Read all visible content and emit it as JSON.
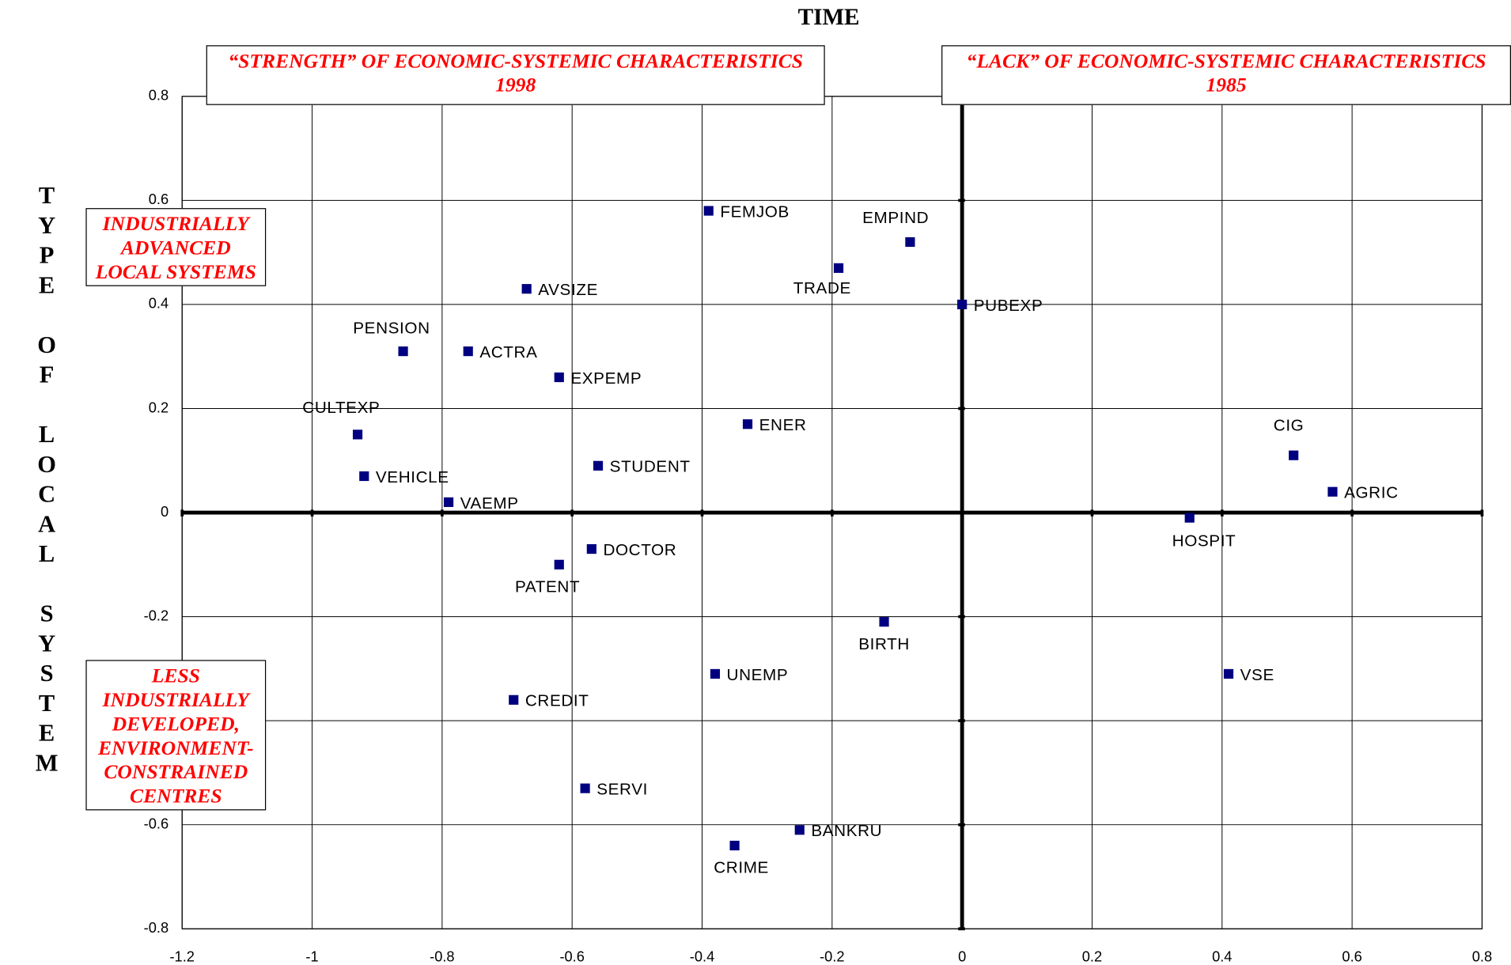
{
  "chart_data": {
    "type": "scatter",
    "title": "TIME",
    "y_label": "TYPE OF LOCAL SYSTEM",
    "series": [
      {
        "color": "#000080",
        "labels": [
          "FEMJOB",
          "EMPIND",
          "TRADE",
          "PUBEXP",
          "AVSIZE",
          "PENSION",
          "ACTRA",
          "EXPEMP",
          "ENER",
          "CULTEXP",
          "STUDENT",
          "VEHICLE",
          "VAEMP",
          "CIG",
          "AGRIC",
          "HOSPIT",
          "DOCTOR",
          "PATENT",
          "BIRTH",
          "UNEMP",
          "VSE",
          "CREDIT",
          "SERVI",
          "BANKRU",
          "CRIME"
        ],
        "x": [
          -0.39,
          -0.08,
          -0.19,
          0,
          -0.67,
          -0.86,
          -0.76,
          -0.62,
          -0.33,
          -0.93,
          -0.56,
          -0.92,
          -0.79,
          0.51,
          0.57,
          0.35,
          -0.57,
          -0.62,
          -0.12,
          -0.38,
          0.41,
          -0.69,
          -0.58,
          -0.25,
          -0.35
        ],
        "values": [
          0.58,
          0.52,
          0.47,
          0.4,
          0.43,
          0.31,
          0.31,
          0.26,
          0.17,
          0.15,
          0.09,
          0.07,
          0.02,
          0.11,
          0.04,
          -0.01,
          -0.07,
          -0.1,
          -0.21,
          -0.31,
          -0.31,
          -0.36,
          -0.53,
          -0.61,
          -0.64
        ]
      }
    ],
    "xlim": [
      -1.2,
      0.8
    ],
    "xticks": [
      -1.2,
      -1,
      -0.8,
      -0.6,
      -0.4,
      -0.2,
      0,
      0.2,
      0.4,
      0.6,
      0.8
    ],
    "ylim": [
      -0.8,
      0.8
    ],
    "yticks": [
      -0.8,
      -0.6,
      -0.4,
      -0.2,
      0,
      0.2,
      0.4,
      0.6,
      0.8
    ],
    "grid": true,
    "annotations": [
      {
        "lines": [
          "“STRENGTH” OF ECONOMIC-SYSTEMIC CHARACTERISTICS",
          "1998"
        ]
      },
      {
        "lines": [
          "“LACK” OF ECONOMIC-SYSTEMIC CHARACTERISTICS",
          "1985"
        ]
      },
      {
        "lines": [
          "INDUSTRIALLY",
          "ADVANCED",
          "LOCAL SYSTEMS"
        ]
      },
      {
        "lines": [
          "LESS",
          "INDUSTRIALLY",
          "DEVELOPED,",
          "ENVIRONMENT-",
          "CONSTRAINED",
          "CENTRES"
        ]
      }
    ]
  }
}
